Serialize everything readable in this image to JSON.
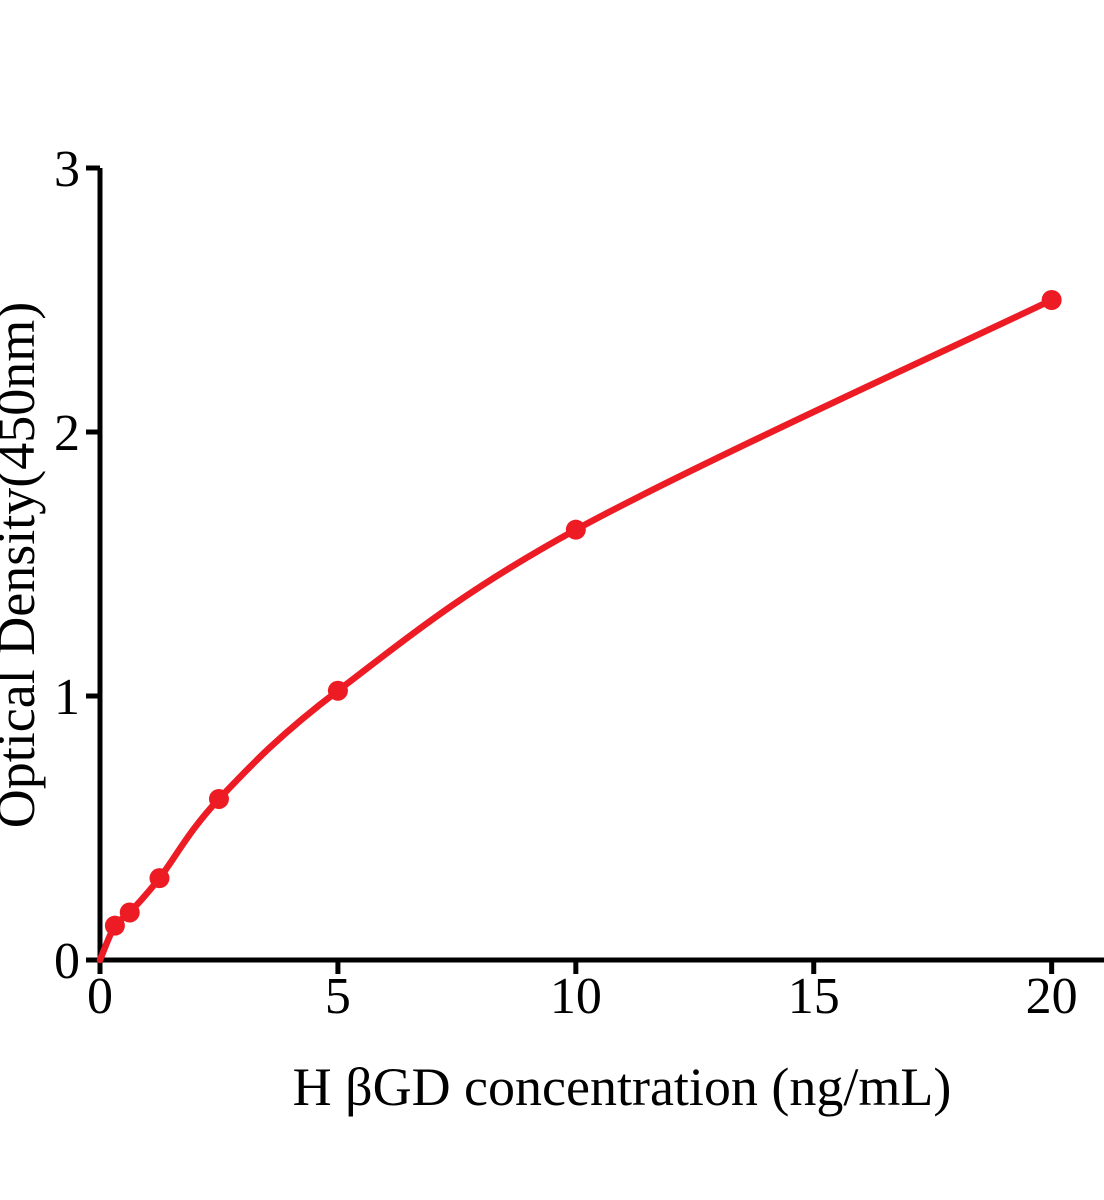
{
  "figure": {
    "background_color": "#ffffff"
  },
  "chart_data": {
    "type": "line",
    "title": "",
    "xlabel": "H βGD concentration (ng/mL)",
    "ylabel": "Optical Density(450nm)",
    "series": [
      {
        "name": "standard-curve",
        "x": [
          0.313,
          0.625,
          1.25,
          2.5,
          5,
          10,
          20
        ],
        "y": [
          0.13,
          0.18,
          0.31,
          0.61,
          1.02,
          1.63,
          2.5
        ]
      }
    ],
    "curve_start": {
      "x": 0,
      "y": 0
    },
    "xticks": [
      0,
      5,
      10,
      15,
      20
    ],
    "yticks": [
      0,
      1,
      2,
      3
    ],
    "xlim": [
      0,
      21.1
    ],
    "ylim": [
      0,
      3
    ],
    "grid": false,
    "legend_position": "none",
    "line_color": "#ED1C24",
    "marker_color": "#ED1C24",
    "axis_color": "#000000",
    "marker_shape": "circle"
  }
}
